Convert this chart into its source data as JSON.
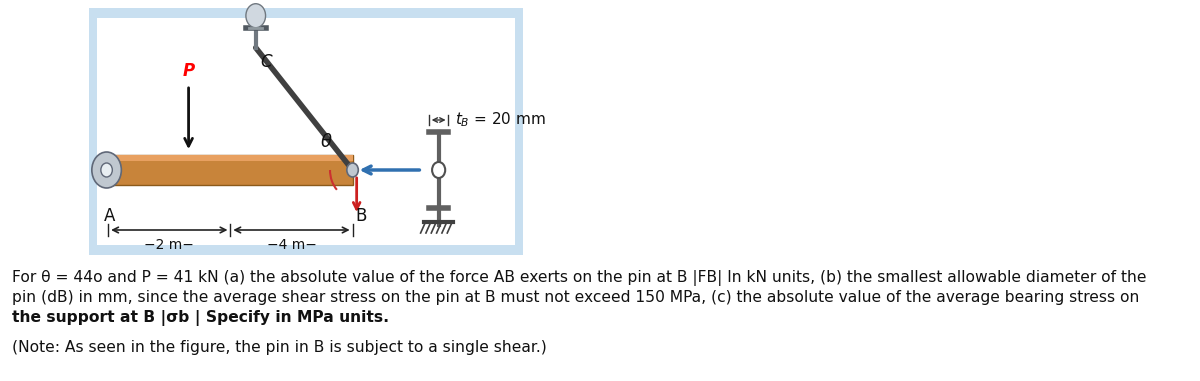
{
  "fig_width": 12.0,
  "fig_height": 3.81,
  "bg_color": "#ffffff",
  "diagram_bg": "#c8dff0",
  "text_line1": "For θ = 44o and P = 41 kN (a) the absolute value of the force AB exerts on the pin at B |FB| In kN units, (b) the smallest allowable diameter of the",
  "text_line2": "pin (dB) in mm, since the average shear stress on the pin at B must not exceed 150 MPa, (c) the absolute value of the average bearing stress on",
  "text_line3": "the support at B |σb | Specify in MPa units.",
  "text_note": "(Note: As seen in the figure, the pin in B is subject to a single shear.)",
  "tb_label": "t_B = 20 mm",
  "label_B": "B",
  "label_A": "A",
  "label_C": "C",
  "label_P": "P",
  "label_theta": "θ",
  "label_2m": "→2 m→",
  "label_4m": "→4 m→",
  "beam_color": "#c8843a",
  "beam_edge": "#8B5a1a",
  "text_fontsize": 11.5,
  "note_fontsize": 11.5
}
